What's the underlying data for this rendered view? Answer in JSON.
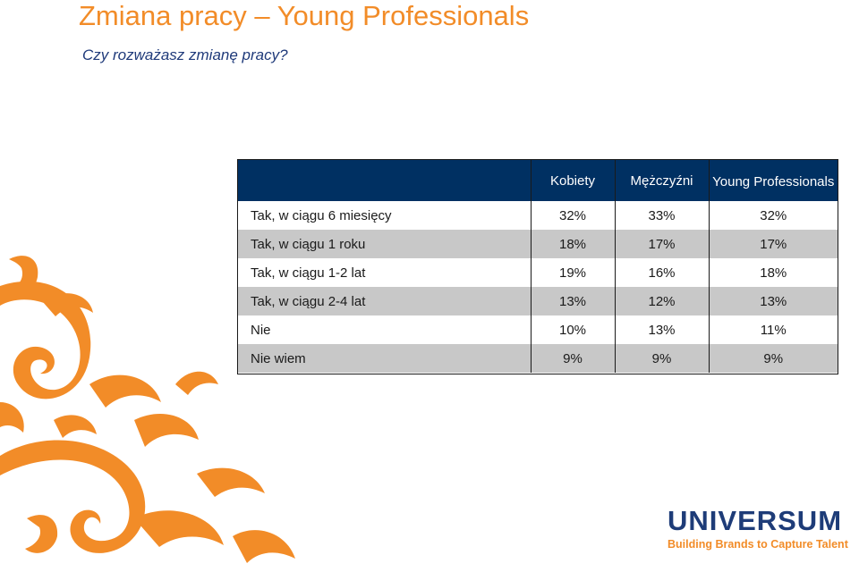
{
  "slide": {
    "title": "Zmiana pracy – Young Professionals",
    "subtitle": "Czy rozważasz zmianę pracy?"
  },
  "table": {
    "headers": [
      "",
      "Kobiety",
      "Mężczyźni",
      "Young Professionals"
    ],
    "rows": [
      {
        "label": "Tak, w ciągu 6 miesięcy",
        "values": [
          "32%",
          "33%",
          "32%"
        ]
      },
      {
        "label": "Tak, w ciągu 1 roku",
        "values": [
          "18%",
          "17%",
          "17%"
        ]
      },
      {
        "label": "Tak, w ciągu 1-2 lat",
        "values": [
          "19%",
          "16%",
          "18%"
        ]
      },
      {
        "label": "Tak, w ciągu 2-4 lat",
        "values": [
          "13%",
          "12%",
          "13%"
        ]
      },
      {
        "label": "Nie",
        "values": [
          "10%",
          "13%",
          "11%"
        ]
      },
      {
        "label": "Nie wiem",
        "values": [
          "9%",
          "9%",
          "9%"
        ]
      }
    ]
  },
  "logo": {
    "wordmark": "UNIVERSUM",
    "tagline": "Building Brands to Capture Talent"
  },
  "colors": {
    "accent_orange": "#f28c28",
    "header_navy": "#003062",
    "row_shade": "#c8c8c8",
    "logo_blue": "#1e3c78"
  }
}
